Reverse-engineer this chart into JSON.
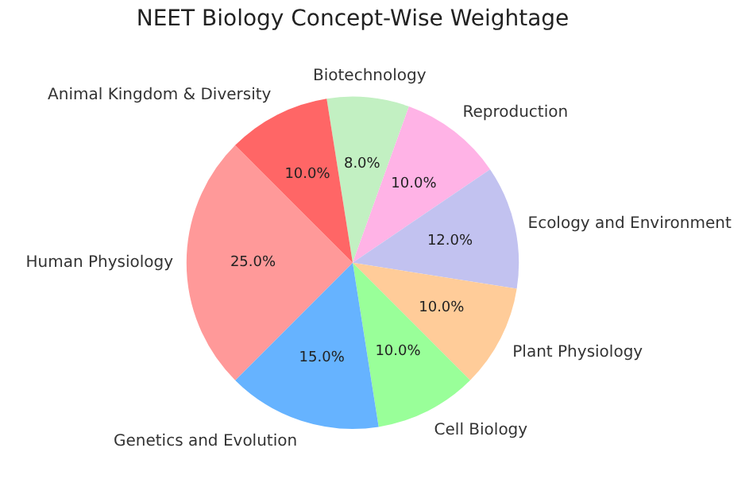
{
  "chart_data": {
    "type": "pie",
    "title": "NEET Biology Concept-Wise Weightage",
    "categories": [
      "Biotechnology",
      "Reproduction",
      "Ecology and Environment",
      "Plant Physiology",
      "Cell Biology",
      "Genetics and Evolution",
      "Human Physiology",
      "Animal Kingdom & Diversity"
    ],
    "values": [
      8,
      10,
      12,
      10,
      10,
      15,
      25,
      10
    ],
    "value_labels": [
      "8.0%",
      "10.0%",
      "12.0%",
      "10.0%",
      "10.0%",
      "15.0%",
      "25.0%",
      "10.0%"
    ],
    "colors": [
      "#c2f0c2",
      "#ffb3e6",
      "#c2c2f0",
      "#ffcc99",
      "#99ff99",
      "#66b3ff",
      "#ff9999",
      "#ff6666"
    ],
    "legend": false
  }
}
